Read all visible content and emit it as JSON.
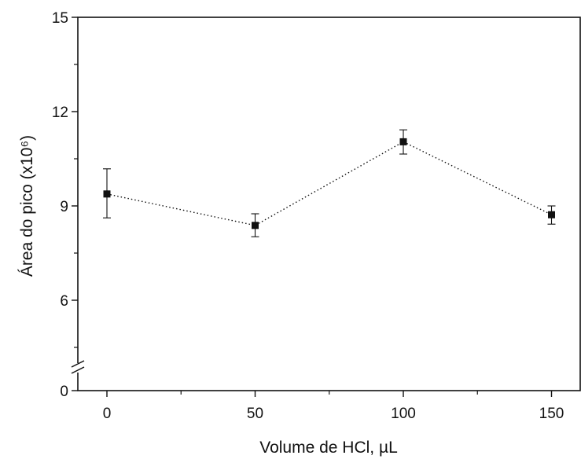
{
  "chart_data": {
    "type": "scatter",
    "xlabel": "Volume de HCl, µL",
    "ylabel": "Área do pico (x10⁶)",
    "xlim": [
      -10,
      160
    ],
    "ylim_upper_segment": [
      3.0,
      15
    ],
    "y_axis_break": true,
    "grid": false,
    "x_ticks": [
      "0",
      "50",
      "100",
      "150"
    ],
    "y_ticks": [
      "0",
      "6",
      "9",
      "12",
      "15"
    ],
    "points": [
      {
        "x": 0,
        "y": 9.38,
        "err_low": 8.62,
        "err_high": 10.18
      },
      {
        "x": 50,
        "y": 8.38,
        "err_low": 8.02,
        "err_high": 8.75
      },
      {
        "x": 100,
        "y": 11.04,
        "err_low": 10.65,
        "err_high": 11.42
      },
      {
        "x": 150,
        "y": 8.72,
        "err_low": 8.42,
        "err_high": 9.0
      }
    ],
    "line_style": "dotted",
    "marker": "square",
    "color": "#111111"
  }
}
